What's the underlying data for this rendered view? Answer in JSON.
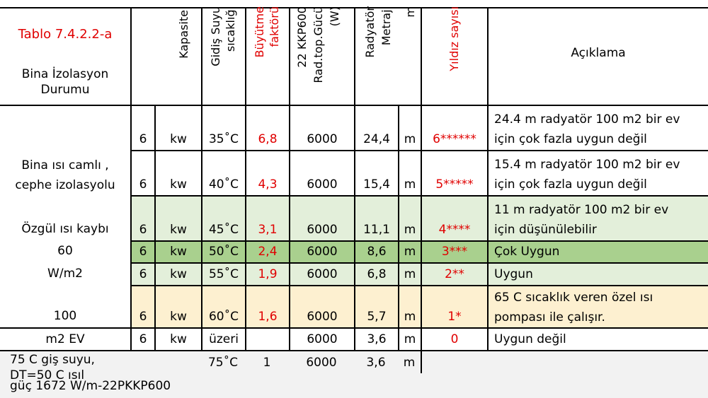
{
  "title": "Tablo 7.4.2.2-a",
  "header": {
    "bina": "Bina İzolasyon Durumu",
    "kapasite": "Kapasite",
    "gidis_l1": "Gidiş Suyu",
    "gidis_l2": "sıcaklığı",
    "buyutme_l1": "Büyütme",
    "buyutme_l2": "faktörü",
    "kkp_l1": "22 KKP600",
    "kkp_l2": "Rad.top.Gücü",
    "kkp_l3": "(W)",
    "rad_l1": "Radyatör",
    "rad_l2": "Metraji",
    "rad_l3": "m",
    "yildiz": "Yıldız sayısı",
    "aciklama": "Açıklama"
  },
  "left_group": {
    "line1": "Bina ısı camlı ,",
    "line2": "cephe izolasyolu",
    "line3": "Özgül ısı kaybı",
    "line4": "60",
    "line5": "W/m2",
    "line6": "100",
    "line7": "m2 EV"
  },
  "rows": [
    {
      "cap": "6",
      "unit": "kw",
      "temp": "35˚C",
      "factor": "6,8",
      "power": "6000",
      "len": "24,4",
      "m": "m",
      "stars": "6******",
      "desc1": "24.4 m radyatör 100 m2 bir ev",
      "desc2": "için çok fazla uygun değil"
    },
    {
      "cap": "6",
      "unit": "kw",
      "temp": "40˚C",
      "factor": "4,3",
      "power": "6000",
      "len": "15,4",
      "m": "m",
      "stars": "5*****",
      "desc1": "15.4 m radyatör 100 m2 bir ev",
      "desc2": "için çok fazla uygun değil"
    },
    {
      "cap": "6",
      "unit": "kw",
      "temp": "45˚C",
      "factor": "3,1",
      "power": "6000",
      "len": "11,1",
      "m": "m",
      "stars": "4****",
      "desc1": "11 m radyatör 100 m2 bir ev",
      "desc2": "için düşünülebilir"
    },
    {
      "cap": "6",
      "unit": "kw",
      "temp": "50˚C",
      "factor": "2,4",
      "power": "6000",
      "len": "8,6",
      "m": "m",
      "stars": "3***",
      "desc1": "Çok Uygun",
      "desc2": ""
    },
    {
      "cap": "6",
      "unit": "kw",
      "temp": "55˚C",
      "factor": "1,9",
      "power": "6000",
      "len": "6,8",
      "m": "m",
      "stars": "2**",
      "desc1": "Uygun",
      "desc2": ""
    },
    {
      "cap": "6",
      "unit": "kw",
      "temp": "60˚C",
      "factor": "1,6",
      "power": "6000",
      "len": "5,7",
      "m": "m",
      "stars": "1*",
      "desc1": "65 C sıcaklık veren özel ısı",
      "desc2": "pompası ile çalışır."
    },
    {
      "cap": "6",
      "unit": "kw",
      "temp": "üzeri",
      "factor": "",
      "power": "6000",
      "len": "3,6",
      "m": "m",
      "stars": "0",
      "desc1": "Uygun değil",
      "desc2": ""
    }
  ],
  "footer": {
    "note1": "75 C giş suyu, DT=50 C ısıl",
    "note2": "güç 1672 W/m-22PKKP600",
    "temp": "75˚C",
    "factor": "1",
    "power": "6000",
    "len": "3,6",
    "m": "m"
  },
  "colors": {
    "red": "#e00000",
    "light_green": "#e3efda",
    "mid_green": "#a9d08e",
    "light_orange": "#fdf0d0"
  }
}
